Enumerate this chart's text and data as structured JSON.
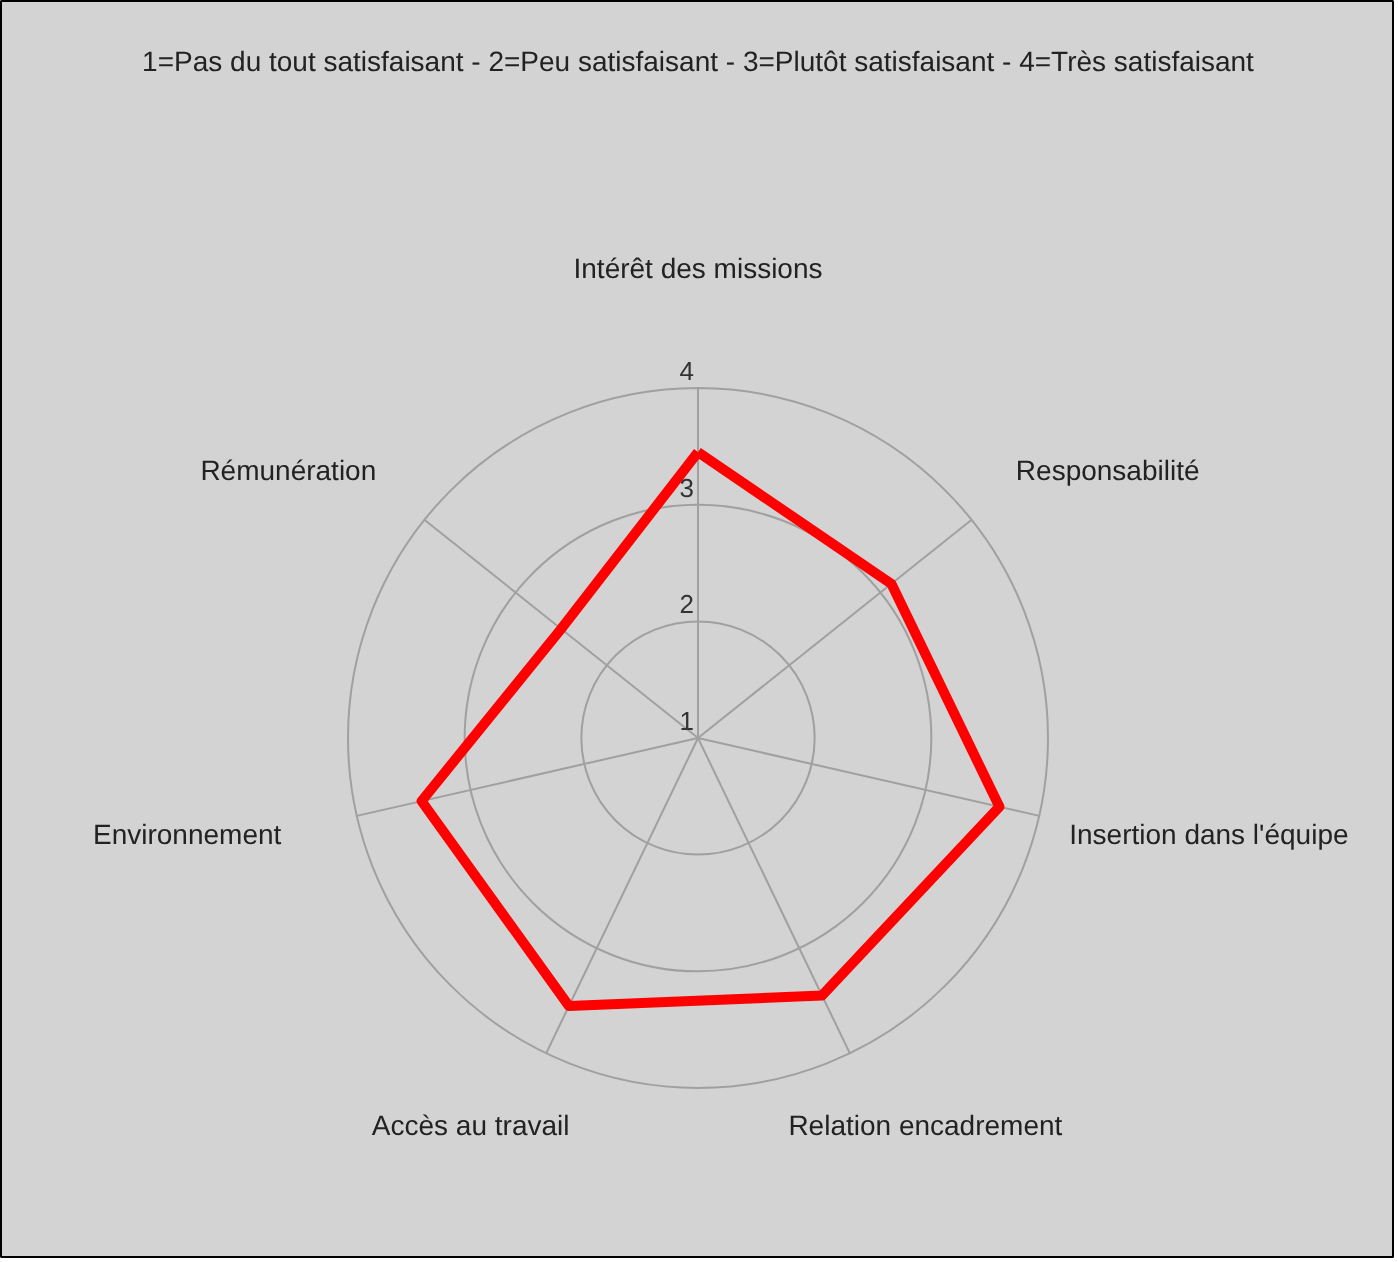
{
  "chart_data": {
    "type": "radar",
    "title": "1=Pas du tout satisfaisant - 2=Peu satisfaisant - 3=Plutôt satisfaisant - 4=Très satisfaisant",
    "categories": [
      "Intérêt des missions",
      "Responsabilité",
      "Insertion dans l'équipe",
      "Relation encadrement",
      "Accès au travail",
      "Environnement",
      "Rémunération"
    ],
    "series": [
      {
        "color": "#ff0000",
        "values": [
          3.45,
          3.12,
          3.65,
          3.45,
          3.55,
          3.43,
          2.5
        ]
      }
    ],
    "ylim": [
      1,
      4
    ],
    "yticks": [
      1,
      2,
      3,
      4
    ],
    "grid": true,
    "marker": "none",
    "line_style": "solid"
  }
}
